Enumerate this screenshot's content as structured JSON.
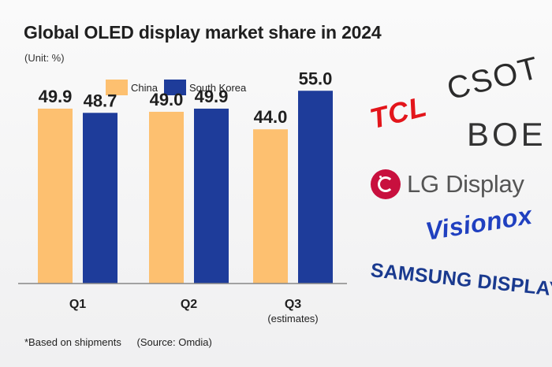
{
  "title": "Global OLED display market share in 2024",
  "unit": "(Unit: %)",
  "footnote": {
    "note": "*Based on shipments",
    "source": "(Source: Omdia)"
  },
  "colors": {
    "china": "#fdc070",
    "korea": "#1e3c9a",
    "axis": "#888888",
    "text": "#1f1f1f"
  },
  "chart_data": {
    "type": "bar",
    "title": "Global OLED display market share in 2024",
    "ylabel": "%",
    "xlabel": "",
    "ylim": [
      0,
      60
    ],
    "grid": false,
    "legend": "top",
    "categories": [
      "Q1",
      "Q2",
      "Q3"
    ],
    "category_sublabels": [
      "",
      "",
      "(estimates)"
    ],
    "series": [
      {
        "name": "China",
        "values": [
          49.9,
          49.0,
          44.0
        ],
        "labels": [
          "49.9",
          "49.0",
          "44.0"
        ]
      },
      {
        "name": "South Korea",
        "values": [
          48.7,
          49.9,
          55.0
        ],
        "labels": [
          "48.7",
          "49.9",
          "55.0"
        ]
      }
    ]
  },
  "logos": {
    "tcl": "TCL",
    "csot": "CSOT",
    "boe": "BOE",
    "lg": "LG Display",
    "visionox": "Visionox",
    "samsung": "SAMSUNG DISPLAY"
  }
}
